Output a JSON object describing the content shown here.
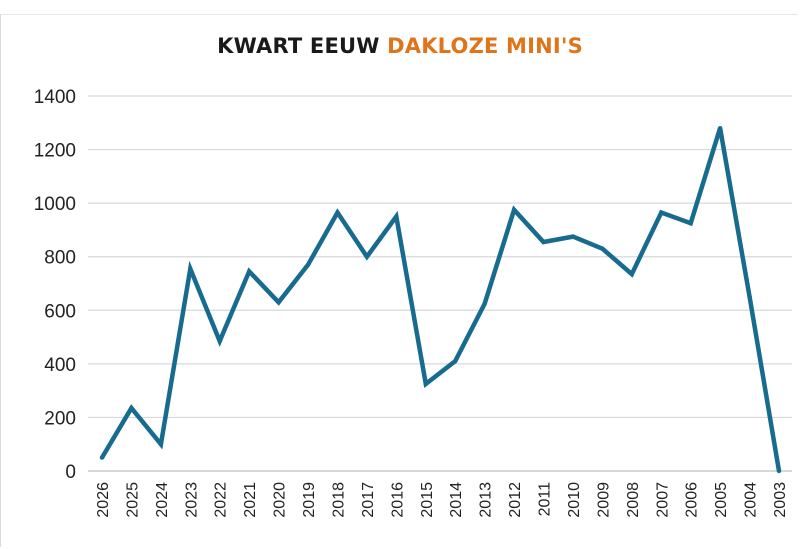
{
  "title": {
    "part1": "KWART EEUW",
    "part2": "DAKLOZE MINI'S",
    "part1_color": "#1a1a1a",
    "part2_color": "#e0741a"
  },
  "chart_data": {
    "type": "line",
    "title": "KWART EEUW DAKLOZE MINI'S",
    "xlabel": "",
    "ylabel": "",
    "categories": [
      "2026",
      "2025",
      "2024",
      "2023",
      "2022",
      "2021",
      "2020",
      "2019",
      "2018",
      "2017",
      "2016",
      "2015",
      "2014",
      "2013",
      "2012",
      "2011",
      "2010",
      "2009",
      "2008",
      "2007",
      "2006",
      "2005",
      "2004",
      "2003"
    ],
    "series": [
      {
        "values": [
          50,
          235,
          100,
          755,
          485,
          745,
          630,
          770,
          965,
          800,
          950,
          325,
          410,
          625,
          975,
          855,
          875,
          830,
          735,
          965,
          925,
          1280,
          650,
          0
        ],
        "color": "#176b8f"
      }
    ],
    "ylim": [
      0,
      1400
    ],
    "yticks": [
      0,
      200,
      400,
      600,
      800,
      1000,
      1200,
      1400
    ],
    "grid": true,
    "legend": "none"
  }
}
